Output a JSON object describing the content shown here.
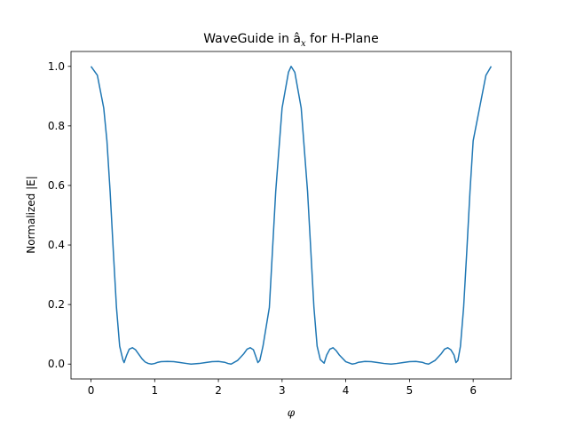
{
  "chart_data": {
    "type": "line",
    "title": "WaveGuide in â",
    "title_subscript": "x",
    "title_suffix": " for H-Plane",
    "xlabel": "φ",
    "ylabel": "Normalized |E|",
    "xlim": [
      -0.314,
      6.597
    ],
    "ylim": [
      -0.05,
      1.05
    ],
    "xticks": [
      0,
      1,
      2,
      3,
      4,
      5,
      6
    ],
    "yticks": [
      0.0,
      0.2,
      0.4,
      0.6,
      0.8,
      1.0
    ],
    "ytick_labels": [
      "0.0",
      "0.2",
      "0.4",
      "0.6",
      "0.8",
      "1.0"
    ],
    "grid": false,
    "series": [
      {
        "color": "#1f77b4",
        "x": [
          0.0,
          0.1,
          0.2,
          0.25,
          0.3,
          0.35,
          0.4,
          0.45,
          0.5,
          0.52,
          0.56,
          0.6,
          0.65,
          0.7,
          0.75,
          0.8,
          0.85,
          0.9,
          0.95,
          1.0,
          1.05,
          1.1,
          1.2,
          1.3,
          1.4,
          1.5,
          1.571,
          1.7,
          1.8,
          1.9,
          2.0,
          2.1,
          2.15,
          2.2,
          2.3,
          2.4,
          2.45,
          2.5,
          2.55,
          2.58,
          2.62,
          2.65,
          2.7,
          2.8,
          2.9,
          3.0,
          3.1,
          3.1416,
          3.2,
          3.3,
          3.4,
          3.5,
          3.55,
          3.6,
          3.66,
          3.7,
          3.75,
          3.8,
          3.85,
          3.9,
          4.0,
          4.1,
          4.15,
          4.2,
          4.3,
          4.4,
          4.5,
          4.6,
          4.712,
          4.8,
          4.9,
          5.0,
          5.1,
          5.2,
          5.25,
          5.3,
          5.4,
          5.5,
          5.55,
          5.6,
          5.65,
          5.7,
          5.73,
          5.76,
          5.8,
          5.85,
          5.9,
          5.95,
          6.0,
          6.1,
          6.2,
          6.283
        ],
        "y": [
          1.0,
          0.97,
          0.86,
          0.75,
          0.58,
          0.38,
          0.19,
          0.06,
          0.015,
          0.005,
          0.03,
          0.05,
          0.055,
          0.048,
          0.033,
          0.018,
          0.007,
          0.002,
          0.0,
          0.002,
          0.006,
          0.008,
          0.009,
          0.008,
          0.005,
          0.002,
          0.0,
          0.002,
          0.005,
          0.008,
          0.009,
          0.006,
          0.002,
          0.0,
          0.012,
          0.035,
          0.05,
          0.055,
          0.048,
          0.03,
          0.005,
          0.012,
          0.06,
          0.19,
          0.58,
          0.86,
          0.98,
          1.0,
          0.98,
          0.86,
          0.58,
          0.19,
          0.06,
          0.015,
          0.003,
          0.03,
          0.05,
          0.055,
          0.045,
          0.03,
          0.008,
          0.0,
          0.002,
          0.006,
          0.009,
          0.008,
          0.005,
          0.002,
          0.0,
          0.002,
          0.005,
          0.008,
          0.009,
          0.006,
          0.002,
          0.0,
          0.012,
          0.035,
          0.05,
          0.055,
          0.048,
          0.03,
          0.005,
          0.012,
          0.06,
          0.19,
          0.38,
          0.58,
          0.75,
          0.86,
          0.97,
          1.0
        ]
      }
    ]
  }
}
